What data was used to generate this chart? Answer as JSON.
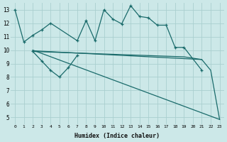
{
  "bg_color": "#cce8e8",
  "grid_color": "#aacfcf",
  "line_color": "#1a6b6b",
  "xlabel": "Humidex (Indice chaleur)",
  "xlim": [
    -0.5,
    23.5
  ],
  "ylim": [
    4.5,
    13.5
  ],
  "yticks": [
    5,
    6,
    7,
    8,
    9,
    10,
    11,
    12,
    13
  ],
  "xtick_labels": [
    "0",
    "1",
    "2",
    "3",
    "4",
    "5",
    "6",
    "7",
    "8",
    "9",
    "10",
    "11",
    "12",
    "13",
    "14",
    "15",
    "16",
    "17",
    "18",
    "19",
    "20",
    "21",
    "22",
    "23"
  ],
  "line1_segments": [
    {
      "x": [
        0,
        1
      ],
      "y": [
        13.0,
        10.6
      ]
    },
    {
      "x": [
        1,
        2,
        3,
        4,
        5,
        6,
        7,
        8,
        9,
        10,
        11,
        12,
        13,
        14,
        15,
        16,
        17,
        18,
        19
      ],
      "y": [
        10.6,
        11.1,
        11.5,
        12.0,
        12.2,
        10.7,
        13.0,
        12.3,
        11.9,
        13.3,
        12.5,
        12.5,
        11.9,
        11.9,
        10.2,
        10.2,
        null,
        null,
        null
      ]
    },
    {
      "x": [
        20,
        21
      ],
      "y": [
        null,
        null
      ]
    }
  ],
  "line1_x": [
    0,
    1,
    2,
    3,
    4,
    7,
    8,
    9,
    10,
    11,
    12,
    13,
    14,
    15,
    16,
    17,
    18,
    19,
    21
  ],
  "line1_y": [
    13.0,
    10.6,
    11.1,
    11.5,
    12.0,
    10.7,
    12.2,
    10.7,
    13.0,
    12.3,
    11.95,
    13.3,
    12.5,
    12.4,
    11.85,
    11.85,
    10.2,
    10.2,
    8.5
  ],
  "line2_x": [
    2,
    3,
    4,
    5,
    6,
    7
  ],
  "line2_y": [
    9.9,
    9.2,
    8.5,
    8.0,
    8.7,
    9.6
  ],
  "line3_x": [
    2,
    23
  ],
  "line3_y": [
    10.0,
    4.85
  ],
  "line4_x": [
    2,
    21,
    22,
    23
  ],
  "line4_y": [
    9.95,
    9.3,
    8.5,
    4.85
  ],
  "line5_x": [
    2,
    19,
    21
  ],
  "line5_y": [
    9.9,
    9.5,
    9.3
  ]
}
